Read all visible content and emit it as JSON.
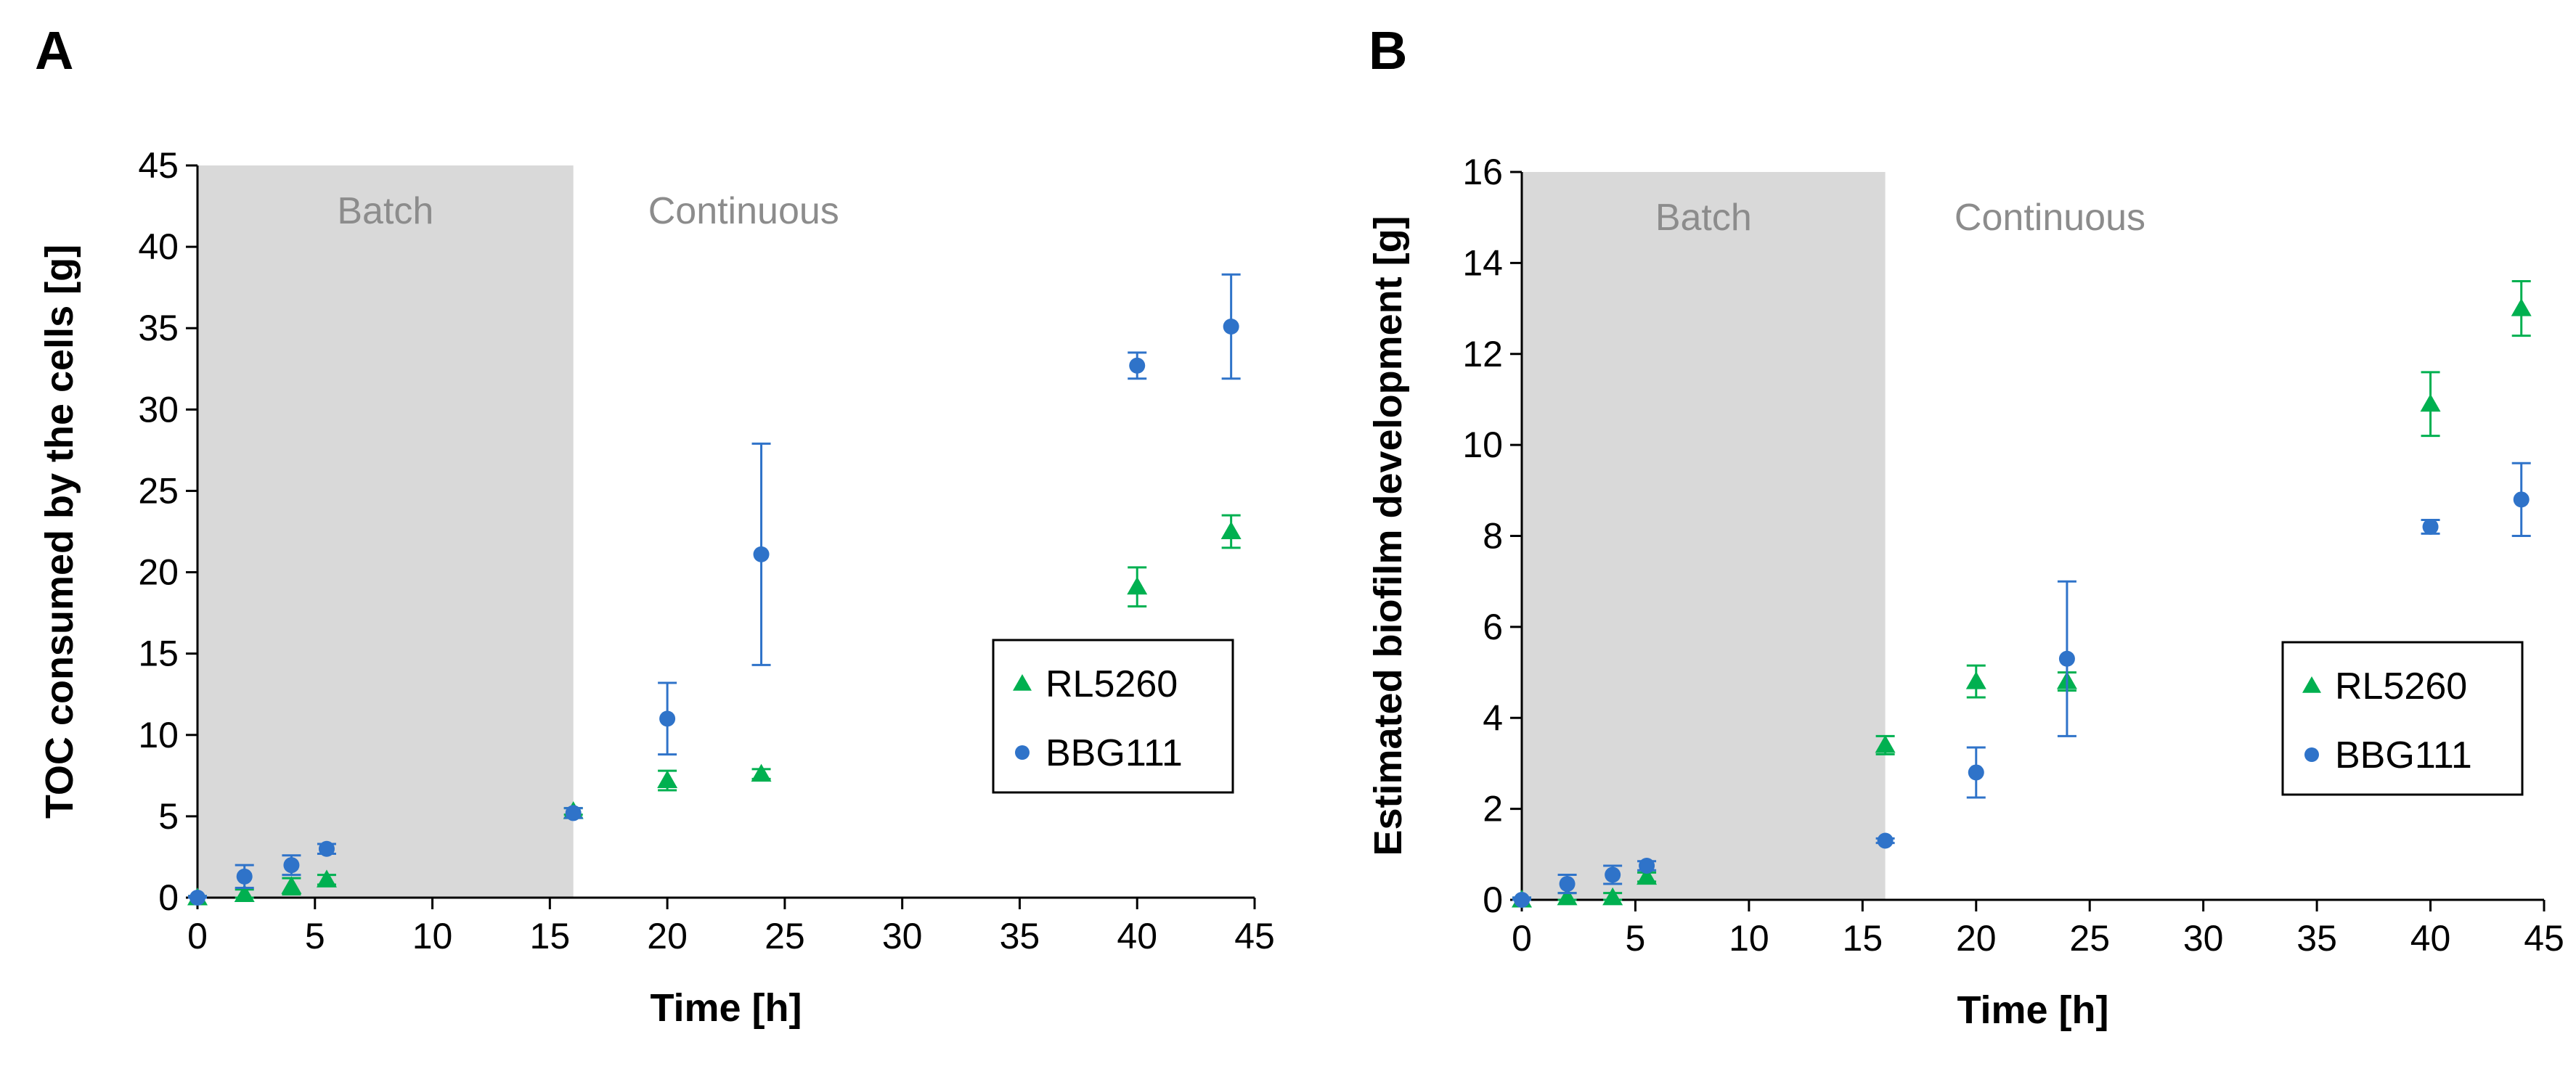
{
  "figure": {
    "panels": [
      "A",
      "B"
    ]
  },
  "chart_data": [
    {
      "panel": "A",
      "type": "scatter",
      "title": "",
      "xlabel": "Time [h]",
      "ylabel": "TOC consumed by the cells [g]",
      "xlim": [
        0,
        45
      ],
      "ylim": [
        0,
        45
      ],
      "xticks": [
        0,
        5,
        10,
        15,
        20,
        25,
        30,
        35,
        40,
        45
      ],
      "yticks": [
        0,
        5,
        10,
        15,
        20,
        25,
        30,
        35,
        40,
        45
      ],
      "regions": [
        {
          "label": "Batch",
          "x_start": 0,
          "x_end": 16,
          "color": "#d9d9d9"
        },
        {
          "label": "Continuous",
          "x_start": 16,
          "x_end": 45,
          "color": "#ffffff"
        }
      ],
      "legend_position": "lower-right",
      "series": [
        {
          "name": "RL5260",
          "marker": "triangle",
          "color": "#00b050",
          "points": [
            {
              "x": 0,
              "y": 0,
              "err": 0.1
            },
            {
              "x": 2,
              "y": 0.2,
              "err": 0.3
            },
            {
              "x": 4,
              "y": 0.7,
              "err": 0.5
            },
            {
              "x": 5.5,
              "y": 1.1,
              "err": 0.3
            },
            {
              "x": 16,
              "y": 5.3,
              "err": 0.2
            },
            {
              "x": 20,
              "y": 7.2,
              "err": 0.6
            },
            {
              "x": 24,
              "y": 7.6,
              "err": 0.3
            },
            {
              "x": 40,
              "y": 19.1,
              "err": 1.2
            },
            {
              "x": 44,
              "y": 22.5,
              "err": 1.0
            }
          ]
        },
        {
          "name": "BBG111",
          "marker": "circle",
          "color": "#2f73c9",
          "points": [
            {
              "x": 0,
              "y": 0,
              "err": 0.1
            },
            {
              "x": 2,
              "y": 1.3,
              "err": 0.7
            },
            {
              "x": 4,
              "y": 2.0,
              "err": 0.6
            },
            {
              "x": 5.5,
              "y": 3.0,
              "err": 0.3
            },
            {
              "x": 16,
              "y": 5.2,
              "err": 0.3
            },
            {
              "x": 20,
              "y": 11.0,
              "err": 2.2
            },
            {
              "x": 24,
              "y": 21.1,
              "err": 6.8
            },
            {
              "x": 40,
              "y": 32.7,
              "err": 0.8
            },
            {
              "x": 44,
              "y": 35.1,
              "err": 3.2
            }
          ]
        }
      ]
    },
    {
      "panel": "B",
      "type": "scatter",
      "title": "",
      "xlabel": "Time [h]",
      "ylabel": "Estimated biofilm development [g]",
      "xlim": [
        0,
        45
      ],
      "ylim": [
        0,
        16
      ],
      "xticks": [
        0,
        5,
        10,
        15,
        20,
        25,
        30,
        35,
        40,
        45
      ],
      "yticks": [
        0,
        2,
        4,
        6,
        8,
        10,
        12,
        14,
        16
      ],
      "regions": [
        {
          "label": "Batch",
          "x_start": 0,
          "x_end": 16,
          "color": "#d9d9d9"
        },
        {
          "label": "Continuous",
          "x_start": 16,
          "x_end": 45,
          "color": "#ffffff"
        }
      ],
      "legend_position": "lower-right",
      "series": [
        {
          "name": "RL5260",
          "marker": "triangle",
          "color": "#00b050",
          "points": [
            {
              "x": 0,
              "y": 0,
              "err": 0.05
            },
            {
              "x": 2,
              "y": 0.05,
              "err": 0.1
            },
            {
              "x": 4,
              "y": 0.05,
              "err": 0.1
            },
            {
              "x": 5.5,
              "y": 0.5,
              "err": 0.1
            },
            {
              "x": 16,
              "y": 3.4,
              "err": 0.2
            },
            {
              "x": 20,
              "y": 4.8,
              "err": 0.35
            },
            {
              "x": 24,
              "y": 4.8,
              "err": 0.2
            },
            {
              "x": 40,
              "y": 10.9,
              "err": 0.7
            },
            {
              "x": 44,
              "y": 13.0,
              "err": 0.6
            }
          ]
        },
        {
          "name": "BBG111",
          "marker": "circle",
          "color": "#2f73c9",
          "points": [
            {
              "x": 0,
              "y": 0,
              "err": 0.05
            },
            {
              "x": 2,
              "y": 0.35,
              "err": 0.2
            },
            {
              "x": 4,
              "y": 0.55,
              "err": 0.2
            },
            {
              "x": 5.5,
              "y": 0.75,
              "err": 0.1
            },
            {
              "x": 16,
              "y": 1.3,
              "err": 0.05
            },
            {
              "x": 20,
              "y": 2.8,
              "err": 0.55
            },
            {
              "x": 24,
              "y": 5.3,
              "err": 1.7
            },
            {
              "x": 40,
              "y": 8.2,
              "err": 0.15
            },
            {
              "x": 44,
              "y": 8.8,
              "err": 0.8
            }
          ]
        }
      ]
    }
  ]
}
